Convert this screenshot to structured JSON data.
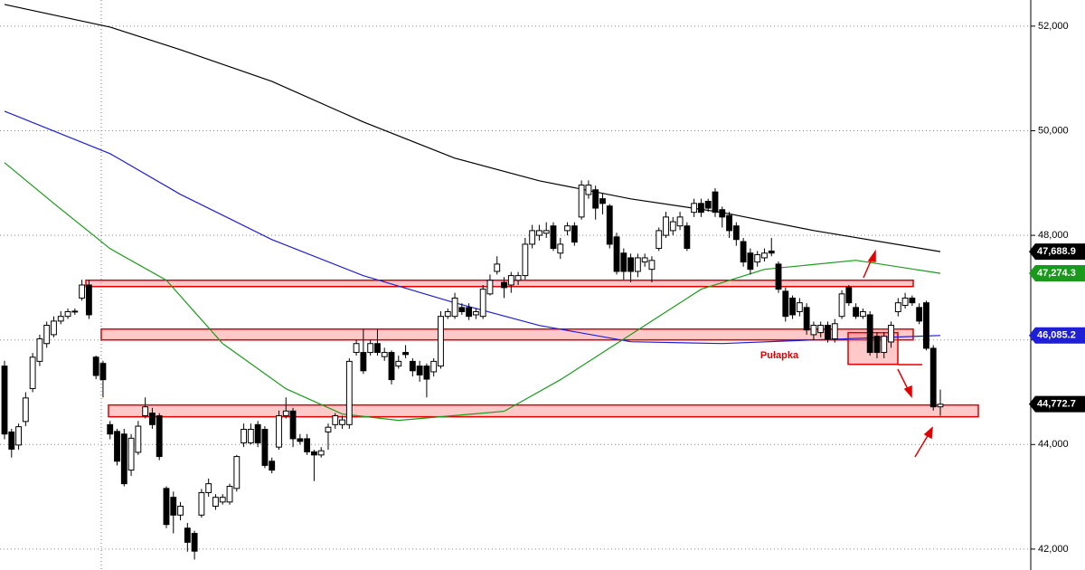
{
  "chart_data": {
    "type": "candlestick",
    "annotation": "Pułapka",
    "ylim": [
      41600,
      52500
    ],
    "yticks": [
      {
        "value": 42000,
        "label": "42,000"
      },
      {
        "value": 44000,
        "label": "44,000"
      },
      {
        "value": 46000,
        "label": "46,000"
      },
      {
        "value": 48000,
        "label": "48,000"
      },
      {
        "value": 50000,
        "label": "50,000"
      },
      {
        "value": 52000,
        "label": "52,000"
      }
    ],
    "xlim": [
      0,
      133
    ],
    "grid": true,
    "up_color": "#ffffff",
    "down_color": "#000000",
    "open": [
      45500,
      44240,
      43990,
      44440,
      45070,
      45590,
      45930,
      46100,
      46360,
      46450,
      46540,
      46800,
      47050,
      45670,
      45550,
      44380,
      44250,
      44200,
      43510,
      43850,
      44550,
      44600,
      44550,
      43160,
      42990,
      42650,
      42400,
      42300,
      42650,
      43080,
      42820,
      42900,
      42900,
      43160,
      44030,
      44030,
      44380,
      44290,
      43680,
      43950,
      44550,
      44640,
      44110,
      44110,
      43860,
      43800,
      44240,
      44380,
      44380,
      44380,
      45760,
      45760,
      45760,
      45930,
      45680,
      45760,
      45500,
      45760,
      45590,
      45500,
      45500,
      45390,
      45500,
      46450,
      46450,
      46620,
      46620,
      46480,
      46450,
      46880,
      47310,
      47100,
      47050,
      47140,
      47230,
      47830,
      48000,
      48040,
      48180,
      47660,
      48090,
      48180,
      48350,
      48780,
      48870,
      48700,
      48560,
      47970,
      47660,
      47570,
      47310,
      47490,
      47350,
      47750,
      48000,
      48090,
      48180,
      48180,
      48440,
      48610,
      48650,
      48830,
      48490,
      48380,
      48180,
      47880,
      47660,
      47490,
      47570,
      47700,
      47450,
      46930,
      46800,
      46540,
      46620,
      46100,
      46140,
      46280,
      46020,
      46450,
      47000,
      46620,
      46450,
      46480,
      46070,
      45760,
      45960,
      46540,
      46660,
      46800,
      46620,
      46710,
      45840,
      44720
    ],
    "high": [
      45600,
      44300,
      44400,
      45000,
      45750,
      46100,
      46350,
      46450,
      46550,
      46600,
      46600,
      47150,
      47150,
      45700,
      45600,
      44450,
      44300,
      44300,
      44200,
      44450,
      44900,
      44700,
      44600,
      43200,
      43100,
      42900,
      42500,
      42350,
      43150,
      43350,
      43050,
      43050,
      43250,
      43800,
      44400,
      44400,
      44450,
      44350,
      43750,
      44650,
      44900,
      44700,
      44200,
      44200,
      43900,
      43950,
      44400,
      44600,
      44550,
      45650,
      46000,
      46200,
      46000,
      46200,
      45850,
      45800,
      45700,
      45900,
      45650,
      45600,
      45550,
      45650,
      46550,
      46600,
      46900,
      46700,
      46700,
      46600,
      47050,
      47250,
      47600,
      47200,
      47300,
      47300,
      47950,
      48200,
      48200,
      48250,
      48250,
      47950,
      48250,
      48250,
      49050,
      49050,
      48950,
      48800,
      48600,
      48050,
      47750,
      47650,
      47650,
      47650,
      47600,
      48150,
      48450,
      48350,
      48450,
      48250,
      48700,
      48700,
      48700,
      48900,
      48550,
      48450,
      48250,
      47950,
      47750,
      47700,
      47750,
      47950,
      47500,
      47000,
      46850,
      46800,
      46700,
      46350,
      46350,
      46350,
      46400,
      46950,
      47050,
      46700,
      46600,
      46550,
      46150,
      46150,
      46350,
      46800,
      46900,
      46850,
      46700,
      46750,
      45900,
      45050
    ],
    "low": [
      44100,
      43750,
      43900,
      44350,
      45000,
      45500,
      45850,
      46050,
      46300,
      46400,
      46480,
      46750,
      46400,
      45250,
      44900,
      44100,
      43600,
      43200,
      43400,
      43800,
      44500,
      44300,
      43700,
      42400,
      42300,
      42550,
      41950,
      41800,
      42600,
      43000,
      42750,
      42850,
      42850,
      43100,
      43950,
      44000,
      43950,
      43550,
      43450,
      43900,
      44500,
      43950,
      44000,
      43800,
      43300,
      43750,
      43900,
      44300,
      44300,
      44300,
      45700,
      45350,
      45700,
      45700,
      45600,
      45150,
      45450,
      45650,
      45300,
      45200,
      44900,
      45300,
      45450,
      46400,
      46400,
      46480,
      46380,
      46400,
      46400,
      46850,
      47250,
      46800,
      46900,
      47050,
      47150,
      47750,
      47900,
      47950,
      47700,
      47550,
      48000,
      47800,
      48300,
      48700,
      48300,
      48400,
      47750,
      47250,
      47150,
      47100,
      47200,
      47400,
      47100,
      47700,
      47950,
      48000,
      48100,
      47700,
      48350,
      48350,
      48450,
      48350,
      48150,
      47950,
      47800,
      47400,
      47250,
      47400,
      47500,
      47600,
      46900,
      46350,
      46400,
      46450,
      46100,
      46000,
      46050,
      45950,
      45950,
      46400,
      46650,
      46400,
      46400,
      45700,
      45650,
      45650,
      45850,
      46450,
      46600,
      46650,
      46300,
      45800,
      44650,
      44550
    ],
    "close": [
      44200,
      43910,
      44340,
      44890,
      45670,
      46020,
      46280,
      46360,
      46450,
      46540,
      46550,
      47050,
      46480,
      45320,
      45240,
      44200,
      43680,
      43250,
      44120,
      44350,
      44720,
      44380,
      43770,
      42470,
      42650,
      42820,
      42130,
      41960,
      43080,
      43250,
      42990,
      42990,
      43200,
      43770,
      44290,
      44290,
      44030,
      43600,
      43510,
      44550,
      44640,
      44110,
      44060,
      43860,
      43800,
      43880,
      44330,
      44550,
      44470,
      45590,
      45930,
      45410,
      45930,
      45760,
      45760,
      45240,
      45590,
      45720,
      45410,
      45330,
      45250,
      45590,
      46450,
      46540,
      46800,
      46540,
      46450,
      46540,
      46970,
      47140,
      47450,
      47000,
      47230,
      47230,
      47830,
      48090,
      48090,
      48090,
      47750,
      47830,
      48180,
      47870,
      48960,
      48960,
      48520,
      48610,
      47830,
      47310,
      47310,
      47310,
      47570,
      47570,
      47520,
      48090,
      48350,
      48260,
      48350,
      47750,
      48610,
      48440,
      48520,
      48440,
      48350,
      48090,
      47920,
      47490,
      47350,
      47630,
      47660,
      47660,
      46970,
      46450,
      46480,
      46710,
      46190,
      46280,
      46280,
      46020,
      46310,
      46880,
      46710,
      46450,
      46540,
      45760,
      45760,
      46070,
      46280,
      46710,
      46800,
      46710,
      46360,
      45840,
      44720,
      44770
    ],
    "lines": [
      {
        "color": "#000000",
        "x": [
          0,
          15,
          25,
          38,
          51,
          64,
          76,
          89,
          102,
          115,
          133
        ],
        "values": [
          52415,
          51982,
          51550,
          50945,
          50167,
          49475,
          49043,
          48697,
          48438,
          48092,
          47689
        ]
      },
      {
        "color": "#1f1fd6",
        "x": [
          0,
          15,
          25,
          38,
          51,
          64,
          76,
          89,
          102,
          115,
          133
        ],
        "values": [
          50374,
          49562,
          48784,
          47919,
          47228,
          46709,
          46276,
          45965,
          45931,
          46000,
          46085
        ]
      },
      {
        "color": "#1a9a1a",
        "x": [
          0,
          7,
          15,
          23,
          31,
          40,
          48,
          56,
          71,
          79,
          89,
          99,
          108,
          121,
          133
        ],
        "values": [
          49389,
          48611,
          47746,
          47141,
          45931,
          45066,
          44582,
          44461,
          44634,
          45239,
          46104,
          46968,
          47349,
          47522,
          47274
        ]
      }
    ],
    "zones": [
      {
        "from": 47020,
        "to": 47141
      },
      {
        "from": 46000,
        "to": 46207
      },
      {
        "from": 44530,
        "to": 44755
      },
      {
        "from": 45533,
        "to": 46139
      }
    ],
    "last_labels": [
      {
        "value": 47688.9,
        "label": "47,688.9",
        "color": "#000000"
      },
      {
        "value": 47274.3,
        "label": "47,274.3",
        "color": "#1a9a1a"
      },
      {
        "value": 46085.2,
        "label": "46,085.2",
        "color": "#1f1fd6"
      },
      {
        "value": 44772.7,
        "label": "44,772.7",
        "color": "#000000"
      }
    ]
  }
}
